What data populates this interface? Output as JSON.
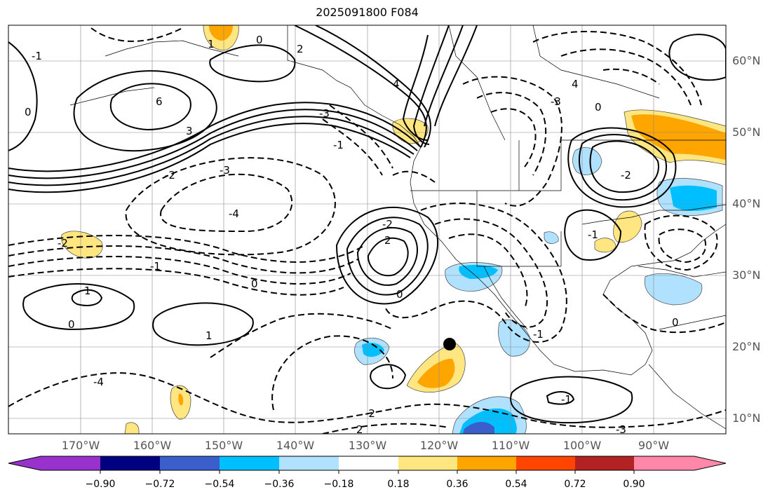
{
  "title": "2025091800 F084",
  "lat_labels": [
    "60°N",
    "50°N",
    "40°N",
    "30°N",
    "20°N",
    "10°N"
  ],
  "lon_labels": [
    "170°W",
    "160°W",
    "150°W",
    "140°W",
    "130°W",
    "120°W",
    "110°W",
    "100°W",
    "90°W"
  ],
  "colorbar": {
    "ticks": [
      "−0.90",
      "−0.72",
      "−0.54",
      "−0.36",
      "−0.18",
      "0.18",
      "0.36",
      "0.54",
      "0.72",
      "0.90"
    ],
    "colors": [
      "#a020f0",
      "#9932cc",
      "#000080",
      "#3a5fcd",
      "#00bfff",
      "#b0e2ff",
      "#ffffff",
      "#ffe680",
      "#ffa500",
      "#ff4500",
      "#b22222",
      "#ff88aa"
    ]
  },
  "contour_labels": [
    "0",
    "2",
    "1",
    "6",
    "3",
    "-1",
    "-2",
    "-3",
    "-4",
    "4",
    "0",
    "-1",
    "1",
    "0",
    "-1",
    "-2",
    "0",
    "1",
    "-3",
    "-2",
    "2",
    "-3",
    "4",
    "0",
    "-2",
    "-1",
    "0",
    "-1",
    "0",
    "-1",
    "-4",
    "-2",
    "-3",
    "2"
  ],
  "marker": "storm-position-marker"
}
